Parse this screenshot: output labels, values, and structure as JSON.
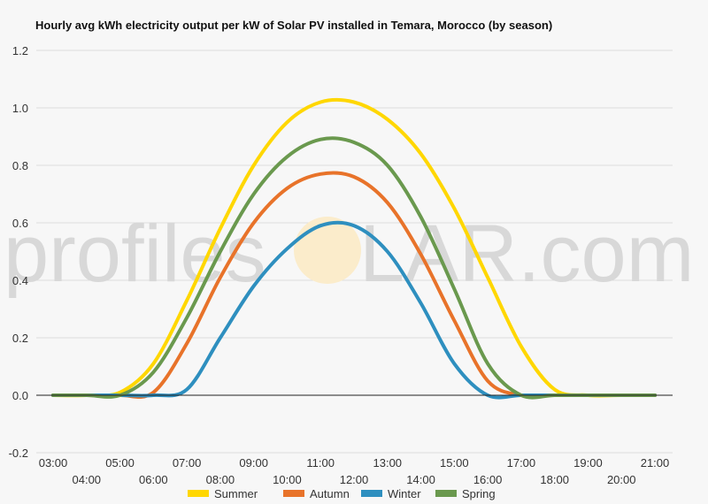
{
  "chart_data": {
    "type": "line",
    "title": "Hourly avg kWh electricity output per kW of Solar PV installed in Temara, Morocco (by season)",
    "xlabel": "",
    "ylabel": "",
    "ylim": [
      -0.2,
      1.2
    ],
    "yticks": [
      "-0.2",
      "0.0",
      "0.2",
      "0.4",
      "0.6",
      "0.8",
      "1.0",
      "1.2"
    ],
    "x": [
      "03:00",
      "04:00",
      "05:00",
      "06:00",
      "07:00",
      "08:00",
      "09:00",
      "10:00",
      "11:00",
      "12:00",
      "13:00",
      "14:00",
      "15:00",
      "16:00",
      "17:00",
      "18:00",
      "19:00",
      "20:00",
      "21:00"
    ],
    "grid": "horizontal",
    "legend_position": "bottom",
    "series": [
      {
        "name": "Summer",
        "color": "#ffd700",
        "values": [
          0,
          0,
          0.01,
          0.11,
          0.33,
          0.58,
          0.8,
          0.95,
          1.02,
          1.02,
          0.96,
          0.84,
          0.65,
          0.41,
          0.17,
          0.02,
          0,
          0,
          0
        ]
      },
      {
        "name": "Autumn",
        "color": "#e8732a",
        "values": [
          0,
          0,
          0,
          0.01,
          0.18,
          0.41,
          0.6,
          0.72,
          0.77,
          0.76,
          0.67,
          0.49,
          0.26,
          0.05,
          0,
          0,
          0,
          0,
          0
        ]
      },
      {
        "name": "Winter",
        "color": "#2e8fbf",
        "values": [
          0,
          0,
          0,
          0,
          0.02,
          0.2,
          0.38,
          0.51,
          0.59,
          0.59,
          0.5,
          0.32,
          0.11,
          0,
          0,
          0,
          0,
          0,
          0
        ]
      },
      {
        "name": "Spring",
        "color": "#6a994e",
        "values": [
          0,
          0,
          0,
          0.08,
          0.27,
          0.5,
          0.7,
          0.83,
          0.89,
          0.88,
          0.8,
          0.62,
          0.37,
          0.11,
          0,
          0,
          0,
          0,
          0
        ]
      }
    ]
  },
  "watermark": {
    "left_text": "profiles",
    "right_text": "LAR.com"
  }
}
